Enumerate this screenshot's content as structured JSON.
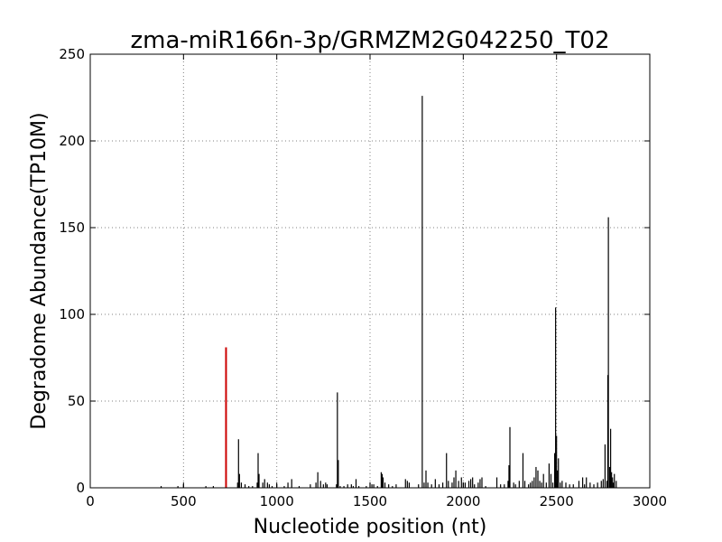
{
  "chart_data": {
    "type": "bar",
    "title": "zma-miR166n-3p/GRMZM2G042250_T02",
    "xlabel": "Nucleotide position (nt)",
    "ylabel": "Degradome Abundance(TP10M)",
    "xlim": [
      0,
      3000
    ],
    "ylim": [
      0,
      250
    ],
    "xticks": [
      0,
      500,
      1000,
      1500,
      2000,
      2500,
      3000
    ],
    "yticks": [
      0,
      50,
      100,
      150,
      200,
      250
    ],
    "grid": true,
    "colors": {
      "background": "#ffffff",
      "bars": "#000000",
      "highlight": "#cc0000",
      "grid": "#808080"
    },
    "highlight": {
      "x": 728,
      "y": 81
    },
    "series": [
      {
        "color": "#000000",
        "points": [
          [
            380,
            1
          ],
          [
            470,
            1
          ],
          [
            500,
            2
          ],
          [
            620,
            1
          ],
          [
            660,
            1
          ],
          [
            790,
            3
          ],
          [
            795,
            28
          ],
          [
            800,
            8
          ],
          [
            810,
            3
          ],
          [
            830,
            2
          ],
          [
            850,
            1
          ],
          [
            870,
            1
          ],
          [
            895,
            3
          ],
          [
            900,
            20
          ],
          [
            905,
            8
          ],
          [
            925,
            3
          ],
          [
            935,
            5
          ],
          [
            950,
            3
          ],
          [
            960,
            2
          ],
          [
            975,
            1
          ],
          [
            1000,
            2
          ],
          [
            1040,
            1
          ],
          [
            1060,
            3
          ],
          [
            1080,
            5
          ],
          [
            1120,
            1
          ],
          [
            1180,
            2
          ],
          [
            1210,
            3
          ],
          [
            1220,
            9
          ],
          [
            1235,
            4
          ],
          [
            1250,
            2
          ],
          [
            1262,
            3
          ],
          [
            1270,
            2
          ],
          [
            1320,
            2
          ],
          [
            1325,
            55
          ],
          [
            1330,
            16
          ],
          [
            1340,
            1
          ],
          [
            1360,
            1
          ],
          [
            1380,
            2
          ],
          [
            1400,
            2
          ],
          [
            1410,
            1
          ],
          [
            1425,
            5
          ],
          [
            1440,
            1
          ],
          [
            1480,
            1
          ],
          [
            1500,
            3
          ],
          [
            1510,
            2
          ],
          [
            1520,
            2
          ],
          [
            1540,
            1
          ],
          [
            1560,
            9
          ],
          [
            1565,
            8
          ],
          [
            1570,
            6
          ],
          [
            1580,
            3
          ],
          [
            1600,
            2
          ],
          [
            1620,
            1
          ],
          [
            1640,
            2
          ],
          [
            1690,
            5
          ],
          [
            1700,
            4
          ],
          [
            1710,
            3
          ],
          [
            1760,
            2
          ],
          [
            1780,
            226
          ],
          [
            1790,
            3
          ],
          [
            1800,
            10
          ],
          [
            1810,
            3
          ],
          [
            1830,
            2
          ],
          [
            1850,
            5
          ],
          [
            1870,
            2
          ],
          [
            1890,
            3
          ],
          [
            1910,
            20
          ],
          [
            1920,
            4
          ],
          [
            1940,
            3
          ],
          [
            1950,
            6
          ],
          [
            1960,
            10
          ],
          [
            1975,
            4
          ],
          [
            1990,
            6
          ],
          [
            2000,
            3
          ],
          [
            2010,
            3
          ],
          [
            2030,
            4
          ],
          [
            2040,
            5
          ],
          [
            2050,
            6
          ],
          [
            2060,
            2
          ],
          [
            2080,
            3
          ],
          [
            2090,
            5
          ],
          [
            2100,
            6
          ],
          [
            2120,
            1
          ],
          [
            2180,
            6
          ],
          [
            2200,
            2
          ],
          [
            2220,
            2
          ],
          [
            2240,
            4
          ],
          [
            2245,
            13
          ],
          [
            2250,
            35
          ],
          [
            2270,
            3
          ],
          [
            2280,
            2
          ],
          [
            2300,
            4
          ],
          [
            2320,
            20
          ],
          [
            2330,
            4
          ],
          [
            2350,
            2
          ],
          [
            2360,
            3
          ],
          [
            2370,
            4
          ],
          [
            2380,
            6
          ],
          [
            2390,
            12
          ],
          [
            2400,
            10
          ],
          [
            2410,
            4
          ],
          [
            2420,
            3
          ],
          [
            2430,
            8
          ],
          [
            2445,
            3
          ],
          [
            2460,
            14
          ],
          [
            2470,
            8
          ],
          [
            2480,
            3
          ],
          [
            2490,
            20
          ],
          [
            2495,
            104
          ],
          [
            2500,
            30
          ],
          [
            2505,
            10
          ],
          [
            2510,
            17
          ],
          [
            2520,
            3
          ],
          [
            2530,
            4
          ],
          [
            2550,
            3
          ],
          [
            2570,
            2
          ],
          [
            2590,
            2
          ],
          [
            2620,
            4
          ],
          [
            2640,
            6
          ],
          [
            2650,
            2
          ],
          [
            2660,
            6
          ],
          [
            2680,
            3
          ],
          [
            2700,
            2
          ],
          [
            2720,
            3
          ],
          [
            2740,
            4
          ],
          [
            2750,
            5
          ],
          [
            2760,
            25
          ],
          [
            2770,
            4
          ],
          [
            2775,
            65
          ],
          [
            2778,
            156
          ],
          [
            2785,
            12
          ],
          [
            2790,
            34
          ],
          [
            2795,
            9
          ],
          [
            2800,
            6
          ],
          [
            2805,
            3
          ],
          [
            2810,
            8
          ],
          [
            2820,
            4
          ]
        ]
      }
    ]
  }
}
